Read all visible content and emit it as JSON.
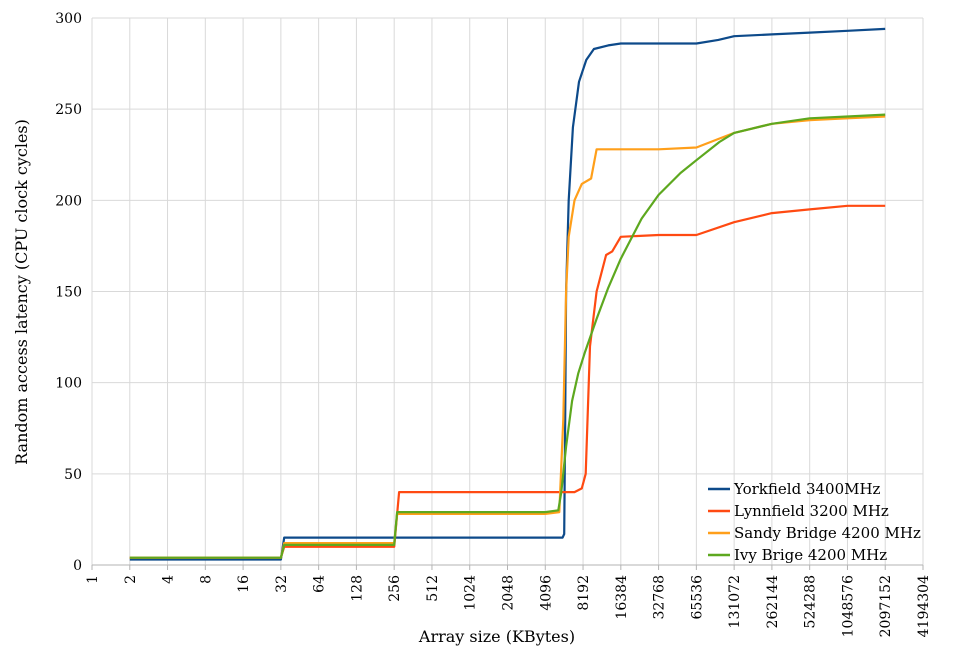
{
  "chart_data": {
    "type": "line",
    "title": "",
    "xlabel": "Array size (KBytes)",
    "ylabel": "Random access latency (CPU clock cycles)",
    "x_scale": "log2",
    "xlim": [
      1,
      4194304
    ],
    "ylim": [
      0,
      300
    ],
    "y_ticks": [
      0,
      50,
      100,
      150,
      200,
      250,
      300
    ],
    "x_ticks": [
      "1",
      "2",
      "4",
      "8",
      "16",
      "32",
      "64",
      "128",
      "256",
      "512",
      "1024",
      "2048",
      "4096",
      "8192",
      "16384",
      "32768",
      "65536",
      "131072",
      "262144",
      "524288",
      "1048576",
      "2097152",
      "4194304"
    ],
    "grid": true,
    "legend_position": "bottom-right",
    "series": [
      {
        "name": "Yorkfield 3400MHz",
        "color": "#0d4a8a",
        "points": [
          [
            2,
            3
          ],
          [
            32,
            3
          ],
          [
            34,
            15
          ],
          [
            256,
            15
          ],
          [
            1024,
            15
          ],
          [
            4096,
            15
          ],
          [
            5632,
            15
          ],
          [
            5792,
            17
          ],
          [
            5900,
            80
          ],
          [
            6000,
            150
          ],
          [
            6300,
            200
          ],
          [
            6800,
            240
          ],
          [
            7600,
            265
          ],
          [
            8700,
            277
          ],
          [
            10000,
            283
          ],
          [
            13000,
            285
          ],
          [
            16384,
            286
          ],
          [
            32768,
            286
          ],
          [
            65536,
            286
          ],
          [
            98000,
            288
          ],
          [
            131072,
            290
          ],
          [
            262144,
            291
          ],
          [
            524288,
            292
          ],
          [
            1048576,
            293
          ],
          [
            2097152,
            294
          ]
        ]
      },
      {
        "name": "Lynnfield 3200 MHz",
        "color": "#ff4a12",
        "points": [
          [
            2,
            4
          ],
          [
            32,
            4
          ],
          [
            34,
            10
          ],
          [
            256,
            10
          ],
          [
            280,
            40
          ],
          [
            1024,
            40
          ],
          [
            4096,
            40
          ],
          [
            7000,
            40
          ],
          [
            8000,
            42
          ],
          [
            8600,
            50
          ],
          [
            9300,
            120
          ],
          [
            10500,
            150
          ],
          [
            12500,
            170
          ],
          [
            14000,
            172
          ],
          [
            16384,
            180
          ],
          [
            32768,
            181
          ],
          [
            65536,
            181
          ],
          [
            131072,
            188
          ],
          [
            262144,
            193
          ],
          [
            524288,
            195
          ],
          [
            1048576,
            197
          ],
          [
            2097152,
            197
          ]
        ]
      },
      {
        "name": "Sandy Bridge 4200 MHz",
        "color": "#ff9f1a",
        "points": [
          [
            2,
            4
          ],
          [
            32,
            4
          ],
          [
            34,
            12
          ],
          [
            256,
            12
          ],
          [
            270,
            28
          ],
          [
            1024,
            28
          ],
          [
            4096,
            28
          ],
          [
            5300,
            29
          ],
          [
            5700,
            80
          ],
          [
            6000,
            150
          ],
          [
            6300,
            180
          ],
          [
            7000,
            200
          ],
          [
            8000,
            209
          ],
          [
            9500,
            212
          ],
          [
            10500,
            228
          ],
          [
            16384,
            228
          ],
          [
            32768,
            228
          ],
          [
            65536,
            229
          ],
          [
            131072,
            237
          ],
          [
            262144,
            242
          ],
          [
            524288,
            244
          ],
          [
            1048576,
            245
          ],
          [
            2097152,
            246
          ]
        ]
      },
      {
        "name": "Ivy Brige 4200 MHz",
        "color": "#5da81f",
        "points": [
          [
            2,
            4
          ],
          [
            32,
            4
          ],
          [
            34,
            11
          ],
          [
            256,
            11
          ],
          [
            270,
            29
          ],
          [
            1024,
            29
          ],
          [
            4096,
            29
          ],
          [
            5200,
            30
          ],
          [
            5500,
            40
          ],
          [
            6000,
            65
          ],
          [
            6700,
            90
          ],
          [
            7500,
            105
          ],
          [
            8500,
            117
          ],
          [
            10500,
            135
          ],
          [
            13000,
            152
          ],
          [
            16384,
            168
          ],
          [
            24000,
            190
          ],
          [
            32768,
            203
          ],
          [
            49000,
            215
          ],
          [
            65536,
            222
          ],
          [
            100000,
            232
          ],
          [
            131072,
            237
          ],
          [
            262144,
            242
          ],
          [
            524288,
            245
          ],
          [
            1048576,
            246
          ],
          [
            2097152,
            247
          ]
        ]
      }
    ]
  }
}
